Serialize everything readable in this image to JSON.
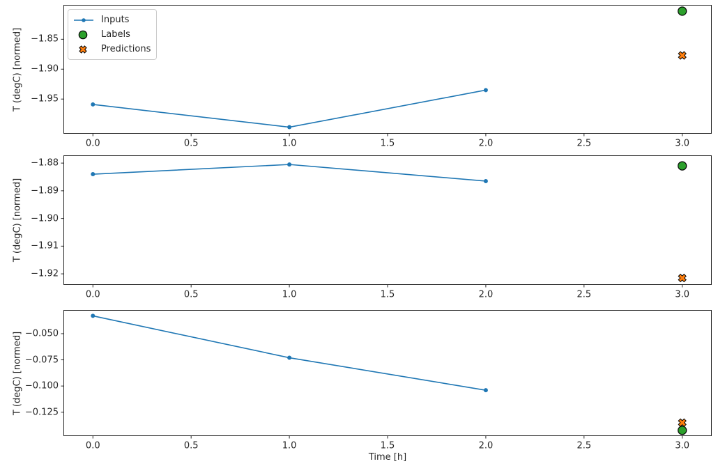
{
  "figure": {
    "background": "#ffffff"
  },
  "colors": {
    "inputs": "#1f77b4",
    "labels": "#2ca02c",
    "predictions": "#ff7f0e",
    "marker_edge": "#000000",
    "spine": "#262626",
    "text": "#262626"
  },
  "legend": {
    "items": [
      "Inputs",
      "Labels",
      "Predictions"
    ]
  },
  "x_axis": {
    "label": "Time [h]",
    "min": -0.15,
    "max": 3.15,
    "tick_values": [
      0.0,
      0.5,
      1.0,
      1.5,
      2.0,
      2.5,
      3.0
    ],
    "tick_labels": [
      "0.0",
      "0.5",
      "1.0",
      "1.5",
      "2.0",
      "2.5",
      "3.0"
    ]
  },
  "chart_data": [
    {
      "type": "line",
      "ylabel": "T (degC) [normed]",
      "ylim": [
        -2.008,
        -1.7925
      ],
      "ytick_values": [
        -1.85,
        -1.9,
        -1.95
      ],
      "ytick_labels": [
        "−1.85",
        "−1.90",
        "−1.95"
      ],
      "series": [
        {
          "name": "Inputs",
          "type": "line",
          "marker": "dot",
          "x": [
            0,
            1,
            2
          ],
          "y": [
            -1.959,
            -1.997,
            -1.935
          ]
        },
        {
          "name": "Labels",
          "type": "scatter",
          "marker": "circle",
          "x": [
            3
          ],
          "y": [
            -1.803
          ]
        },
        {
          "name": "Predictions",
          "type": "scatter",
          "marker": "X",
          "x": [
            3
          ],
          "y": [
            -1.877
          ]
        }
      ]
    },
    {
      "type": "line",
      "ylabel": "T (degC) [normed]",
      "ylim": [
        -1.924,
        -1.8772
      ],
      "ytick_values": [
        -1.88,
        -1.89,
        -1.9,
        -1.91,
        -1.92
      ],
      "ytick_labels": [
        "−1.88",
        "−1.89",
        "−1.90",
        "−1.91",
        "−1.92"
      ],
      "series": [
        {
          "name": "Inputs",
          "type": "line",
          "marker": "dot",
          "x": [
            0,
            1,
            2
          ],
          "y": [
            -1.884,
            -1.8805,
            -1.8865
          ]
        },
        {
          "name": "Labels",
          "type": "scatter",
          "marker": "circle",
          "x": [
            3
          ],
          "y": [
            -1.881
          ]
        },
        {
          "name": "Predictions",
          "type": "scatter",
          "marker": "X",
          "x": [
            3
          ],
          "y": [
            -1.9215
          ]
        }
      ]
    },
    {
      "type": "line",
      "ylabel": "T (degC) [normed]",
      "ylim": [
        -0.1478,
        -0.0274
      ],
      "ytick_values": [
        -0.05,
        -0.075,
        -0.1,
        -0.125
      ],
      "ytick_labels": [
        "−0.050",
        "−0.075",
        "−0.100",
        "−0.125"
      ],
      "series": [
        {
          "name": "Inputs",
          "type": "line",
          "marker": "dot",
          "x": [
            0,
            1,
            2
          ],
          "y": [
            -0.033,
            -0.073,
            -0.104
          ]
        },
        {
          "name": "Labels",
          "type": "scatter",
          "marker": "circle",
          "x": [
            3
          ],
          "y": [
            -0.1423
          ]
        },
        {
          "name": "Predictions",
          "type": "scatter",
          "marker": "X",
          "x": [
            3
          ],
          "y": [
            -0.135
          ]
        }
      ]
    }
  ]
}
